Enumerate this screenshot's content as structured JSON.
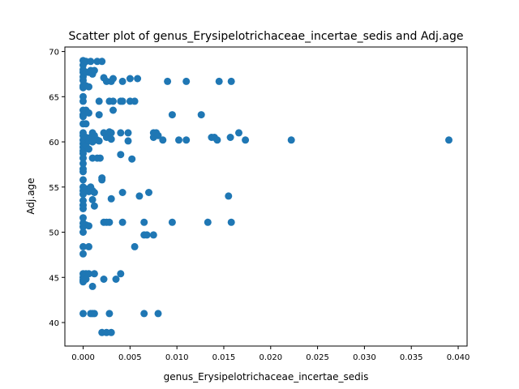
{
  "chart_data": {
    "type": "scatter",
    "title": "Scatter plot of genus_Erysipelotrichaceae_incertae_sedis and Adj.age",
    "xlabel": "genus_Erysipelotrichaceae_incertae_sedis",
    "ylabel": "Adj.age",
    "xlim": [
      -0.00195,
      0.04095
    ],
    "ylim": [
      37.4,
      70.5
    ],
    "xticks": [
      0.0,
      0.005,
      0.01,
      0.015,
      0.02,
      0.025,
      0.03,
      0.035,
      0.04
    ],
    "xtick_labels": [
      "0.000",
      "0.005",
      "0.010",
      "0.015",
      "0.020",
      "0.025",
      "0.030",
      "0.035",
      "0.040"
    ],
    "yticks": [
      40,
      45,
      50,
      55,
      60,
      65,
      70
    ],
    "ytick_labels": [
      "40",
      "45",
      "50",
      "55",
      "60",
      "65",
      "70"
    ],
    "grid": false,
    "marker_color": "#1f77b4",
    "points": [
      [
        0.0,
        69.0
      ],
      [
        0.0,
        68.5
      ],
      [
        0.0,
        68.0
      ],
      [
        0.0,
        67.7
      ],
      [
        0.0,
        67.2
      ],
      [
        0.0,
        66.8
      ],
      [
        0.0,
        66.2
      ],
      [
        0.0,
        66.0
      ],
      [
        0.0,
        65.0
      ],
      [
        0.0,
        64.5
      ],
      [
        0.0,
        63.5
      ],
      [
        0.0,
        63.0
      ],
      [
        0.0,
        62.8
      ],
      [
        0.0,
        62.0
      ],
      [
        0.0,
        61.0
      ],
      [
        0.0,
        60.7
      ],
      [
        0.0,
        60.2
      ],
      [
        0.0,
        59.8
      ],
      [
        0.0,
        59.4
      ],
      [
        0.0,
        59.0
      ],
      [
        0.0,
        58.7
      ],
      [
        0.0,
        58.2
      ],
      [
        0.0,
        57.6
      ],
      [
        0.0,
        57.0
      ],
      [
        0.0,
        56.7
      ],
      [
        0.0,
        55.8
      ],
      [
        0.0,
        55.0
      ],
      [
        0.0,
        54.6
      ],
      [
        0.0,
        54.2
      ],
      [
        0.0,
        53.5
      ],
      [
        0.0,
        53.0
      ],
      [
        0.0,
        52.6
      ],
      [
        0.0,
        51.6
      ],
      [
        0.0,
        51.0
      ],
      [
        0.0,
        50.6
      ],
      [
        0.0,
        50.0
      ],
      [
        0.0,
        48.4
      ],
      [
        0.0,
        47.6
      ],
      [
        0.0,
        45.4
      ],
      [
        0.0,
        45.0
      ],
      [
        0.0,
        44.7
      ],
      [
        0.0,
        44.5
      ],
      [
        0.0,
        41.0
      ],
      [
        0.0003,
        68.9
      ],
      [
        0.0003,
        67.7
      ],
      [
        0.0003,
        66.2
      ],
      [
        0.0003,
        63.5
      ],
      [
        0.0003,
        62.0
      ],
      [
        0.0003,
        60.5
      ],
      [
        0.0003,
        59.6
      ],
      [
        0.0003,
        54.8
      ],
      [
        0.0003,
        50.8
      ],
      [
        0.0003,
        45.4
      ],
      [
        0.0003,
        44.8
      ],
      [
        0.0006,
        67.7
      ],
      [
        0.0006,
        66.1
      ],
      [
        0.0006,
        63.2
      ],
      [
        0.0006,
        60.1
      ],
      [
        0.0006,
        59.2
      ],
      [
        0.0006,
        54.5
      ],
      [
        0.0006,
        50.7
      ],
      [
        0.0006,
        48.4
      ],
      [
        0.0006,
        45.4
      ],
      [
        0.0008,
        68.9
      ],
      [
        0.0008,
        67.9
      ],
      [
        0.0008,
        60.5
      ],
      [
        0.0008,
        55.0
      ],
      [
        0.0008,
        41.0
      ],
      [
        0.001,
        67.5
      ],
      [
        0.001,
        61.0
      ],
      [
        0.001,
        60.0
      ],
      [
        0.001,
        58.2
      ],
      [
        0.001,
        54.6
      ],
      [
        0.001,
        53.6
      ],
      [
        0.001,
        44.0
      ],
      [
        0.001,
        41.0
      ],
      [
        0.0012,
        67.9
      ],
      [
        0.0012,
        60.7
      ],
      [
        0.0012,
        54.4
      ],
      [
        0.0012,
        52.9
      ],
      [
        0.0012,
        45.4
      ],
      [
        0.0012,
        41.0
      ],
      [
        0.0015,
        68.9
      ],
      [
        0.0015,
        60.2
      ],
      [
        0.0015,
        58.2
      ],
      [
        0.0017,
        64.5
      ],
      [
        0.0017,
        63.0
      ],
      [
        0.0017,
        60.1
      ],
      [
        0.0018,
        58.2
      ],
      [
        0.002,
        68.9
      ],
      [
        0.002,
        56.0
      ],
      [
        0.002,
        55.8
      ],
      [
        0.002,
        38.9
      ],
      [
        0.0022,
        67.1
      ],
      [
        0.0022,
        61.0
      ],
      [
        0.0022,
        51.1
      ],
      [
        0.0022,
        44.8
      ],
      [
        0.0025,
        66.7
      ],
      [
        0.0025,
        60.5
      ],
      [
        0.0025,
        51.1
      ],
      [
        0.0025,
        38.9
      ],
      [
        0.0028,
        64.5
      ],
      [
        0.0028,
        61.1
      ],
      [
        0.0028,
        51.1
      ],
      [
        0.0028,
        41.0
      ],
      [
        0.003,
        66.7
      ],
      [
        0.003,
        61.0
      ],
      [
        0.003,
        60.3
      ],
      [
        0.003,
        53.7
      ],
      [
        0.003,
        38.9
      ],
      [
        0.0032,
        67.0
      ],
      [
        0.0032,
        64.5
      ],
      [
        0.0032,
        63.5
      ],
      [
        0.0035,
        44.8
      ],
      [
        0.004,
        64.5
      ],
      [
        0.004,
        61.0
      ],
      [
        0.004,
        58.6
      ],
      [
        0.004,
        45.4
      ],
      [
        0.0042,
        66.7
      ],
      [
        0.0042,
        64.5
      ],
      [
        0.0042,
        54.4
      ],
      [
        0.0042,
        51.1
      ],
      [
        0.0048,
        61.0
      ],
      [
        0.0048,
        60.1
      ],
      [
        0.005,
        67.0
      ],
      [
        0.005,
        64.5
      ],
      [
        0.0052,
        58.1
      ],
      [
        0.0055,
        64.5
      ],
      [
        0.0055,
        48.4
      ],
      [
        0.0058,
        67.0
      ],
      [
        0.006,
        54.0
      ],
      [
        0.0065,
        51.1
      ],
      [
        0.0065,
        49.7
      ],
      [
        0.0065,
        41.0
      ],
      [
        0.0068,
        49.7
      ],
      [
        0.007,
        54.4
      ],
      [
        0.0075,
        61.0
      ],
      [
        0.0075,
        60.5
      ],
      [
        0.0075,
        49.7
      ],
      [
        0.0078,
        61.0
      ],
      [
        0.008,
        60.7
      ],
      [
        0.008,
        41.0
      ],
      [
        0.0085,
        60.2
      ],
      [
        0.009,
        66.7
      ],
      [
        0.0095,
        63.0
      ],
      [
        0.0095,
        51.1
      ],
      [
        0.0102,
        60.2
      ],
      [
        0.011,
        66.7
      ],
      [
        0.011,
        60.2
      ],
      [
        0.0126,
        63.0
      ],
      [
        0.0133,
        51.1
      ],
      [
        0.0137,
        60.5
      ],
      [
        0.014,
        60.5
      ],
      [
        0.0143,
        60.2
      ],
      [
        0.0145,
        66.7
      ],
      [
        0.0155,
        54.0
      ],
      [
        0.0157,
        60.5
      ],
      [
        0.0158,
        66.7
      ],
      [
        0.0158,
        51.1
      ],
      [
        0.0166,
        61.0
      ],
      [
        0.0173,
        60.2
      ],
      [
        0.0222,
        60.2
      ],
      [
        0.039,
        60.2
      ]
    ]
  }
}
